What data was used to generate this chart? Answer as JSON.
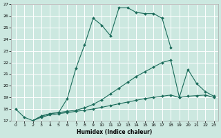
{
  "xlabel": "Humidex (Indice chaleur)",
  "bg_color": "#cce8e0",
  "grid_color": "#ffffff",
  "line_color": "#1a6b5a",
  "xlim": [
    -0.5,
    23.5
  ],
  "ylim": [
    17,
    27
  ],
  "xticks": [
    0,
    1,
    2,
    3,
    4,
    5,
    6,
    7,
    8,
    9,
    10,
    11,
    12,
    13,
    14,
    15,
    16,
    17,
    18,
    19,
    20,
    21,
    22,
    23
  ],
  "yticks": [
    17,
    18,
    19,
    20,
    21,
    22,
    23,
    24,
    25,
    26,
    27
  ],
  "series": [
    {
      "x": [
        2,
        3,
        4,
        5,
        6,
        7,
        8,
        9,
        10,
        11,
        12,
        13,
        14,
        15,
        16,
        17,
        18
      ],
      "y": [
        17.0,
        17.4,
        17.6,
        17.7,
        18.9,
        21.5,
        23.5,
        25.8,
        25.2,
        24.3,
        26.7,
        26.7,
        26.3,
        26.2,
        26.2,
        25.8,
        23.3
      ]
    },
    {
      "x": [
        0,
        1,
        2,
        3,
        4,
        5,
        6,
        7,
        8,
        9,
        10,
        11,
        12,
        13,
        14,
        15,
        16,
        17,
        18,
        19,
        20,
        21,
        22,
        23
      ],
      "y": [
        18.0,
        17.3,
        17.0,
        17.4,
        17.6,
        17.7,
        17.8,
        17.9,
        18.1,
        18.4,
        18.8,
        19.3,
        19.8,
        20.3,
        20.8,
        21.2,
        21.6,
        22.0,
        22.2,
        19.0,
        21.4,
        20.2,
        19.5,
        19.1
      ]
    },
    {
      "x": [
        2,
        3,
        4,
        5,
        6,
        7,
        8,
        9,
        10,
        11,
        12,
        13,
        14,
        15,
        16,
        17,
        18,
        19,
        20,
        21,
        22,
        23
      ],
      "y": [
        17.0,
        17.3,
        17.5,
        17.6,
        17.7,
        17.8,
        17.9,
        18.0,
        18.15,
        18.3,
        18.45,
        18.6,
        18.75,
        18.9,
        19.0,
        19.1,
        19.2,
        19.0,
        19.1,
        19.15,
        19.2,
        19.0
      ]
    }
  ]
}
